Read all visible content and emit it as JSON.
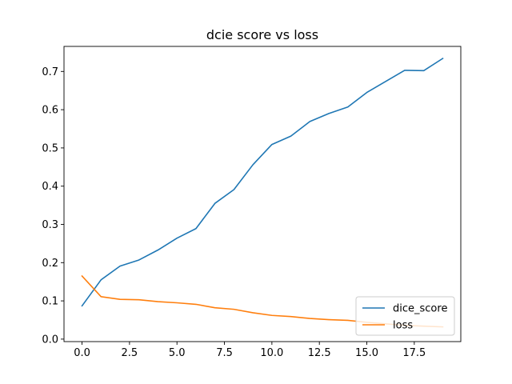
{
  "chart_data": {
    "type": "line",
    "title": "dcie score vs loss",
    "xlabel": "",
    "ylabel": "",
    "xlim": [
      -0.95,
      19.95
    ],
    "ylim": [
      -0.0065,
      0.7655
    ],
    "xticks": [
      0,
      2.5,
      5,
      7.5,
      10,
      12.5,
      15,
      17.5
    ],
    "xtick_labels": [
      "0.0",
      "2.5",
      "5.0",
      "7.5",
      "10.0",
      "12.5",
      "15.0",
      "17.5"
    ],
    "yticks": [
      0,
      0.1,
      0.2,
      0.3,
      0.4,
      0.5,
      0.6,
      0.7
    ],
    "ytick_labels": [
      "0.0",
      "0.1",
      "0.2",
      "0.3",
      "0.4",
      "0.5",
      "0.6",
      "0.7"
    ],
    "grid": false,
    "legend_position": "lower-right",
    "x": [
      0,
      1,
      2,
      3,
      4,
      5,
      6,
      7,
      8,
      9,
      10,
      11,
      12,
      13,
      14,
      15,
      16,
      17,
      18,
      19
    ],
    "series": [
      {
        "name": "dice_score",
        "color": "#1f77b4",
        "values": [
          0.087,
          0.155,
          0.191,
          0.207,
          0.233,
          0.264,
          0.289,
          0.355,
          0.391,
          0.456,
          0.509,
          0.531,
          0.569,
          0.59,
          0.607,
          0.645,
          0.674,
          0.703,
          0.702,
          0.734
        ]
      },
      {
        "name": "loss",
        "color": "#ff7f0e",
        "values": [
          0.165,
          0.111,
          0.104,
          0.103,
          0.098,
          0.095,
          0.091,
          0.082,
          0.078,
          0.069,
          0.062,
          0.059,
          0.054,
          0.051,
          0.049,
          0.044,
          0.04,
          0.036,
          0.034,
          0.032
        ]
      }
    ]
  }
}
